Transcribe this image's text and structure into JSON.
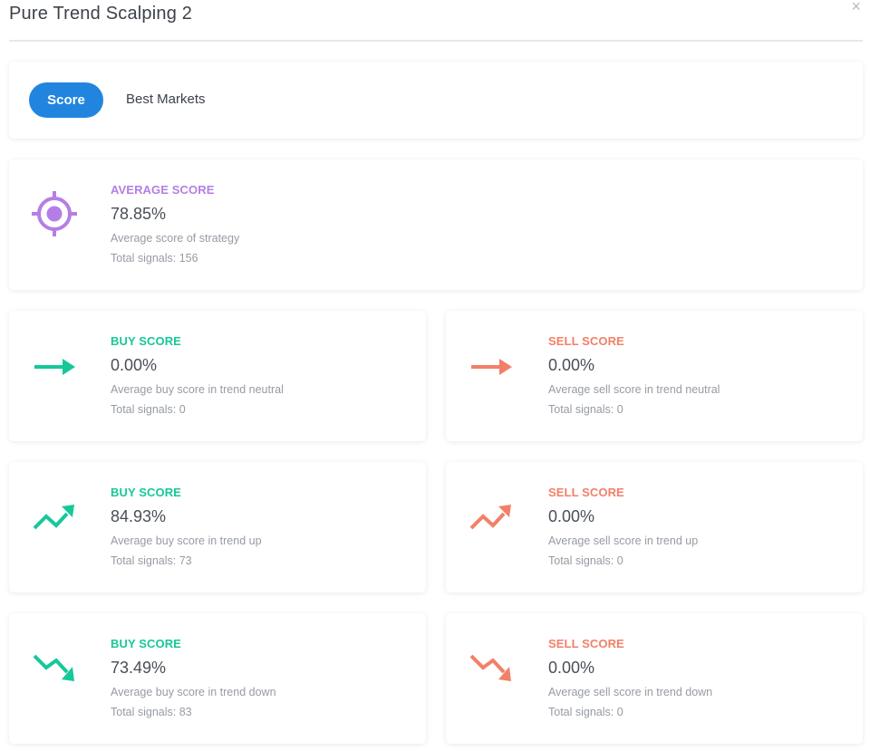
{
  "window": {
    "title": "Pure Trend Scalping 2",
    "close_glyph": "×"
  },
  "tabs": [
    {
      "label": "Score",
      "active": true
    },
    {
      "label": "Best Markets",
      "active": false
    }
  ],
  "colors": {
    "average": "#b57ee6",
    "buy": "#16c899",
    "sell": "#f28068",
    "tab_active": "#2185e0"
  },
  "average": {
    "icon": "target-icon",
    "label": "AVERAGE SCORE",
    "value": "78.85%",
    "description": "Average score of strategy",
    "signals": "Total signals: 156"
  },
  "cards": [
    {
      "icon": "arrow-right-icon",
      "label": "BUY SCORE",
      "value": "0.00%",
      "description": "Average buy score in trend neutral",
      "signals": "Total signals: 0"
    },
    {
      "icon": "arrow-right-icon",
      "label": "SELL SCORE",
      "value": "0.00%",
      "description": "Average sell score in trend neutral",
      "signals": "Total signals: 0"
    },
    {
      "icon": "trend-up-icon",
      "label": "BUY SCORE",
      "value": "84.93%",
      "description": "Average buy score in trend up",
      "signals": "Total signals: 73"
    },
    {
      "icon": "trend-up-icon",
      "label": "SELL SCORE",
      "value": "0.00%",
      "description": "Average sell score in trend up",
      "signals": "Total signals: 0"
    },
    {
      "icon": "trend-down-icon",
      "label": "BUY SCORE",
      "value": "73.49%",
      "description": "Average buy score in trend down",
      "signals": "Total signals: 83"
    },
    {
      "icon": "trend-down-icon",
      "label": "SELL SCORE",
      "value": "0.00%",
      "description": "Average sell score in trend down",
      "signals": "Total signals: 0"
    }
  ]
}
